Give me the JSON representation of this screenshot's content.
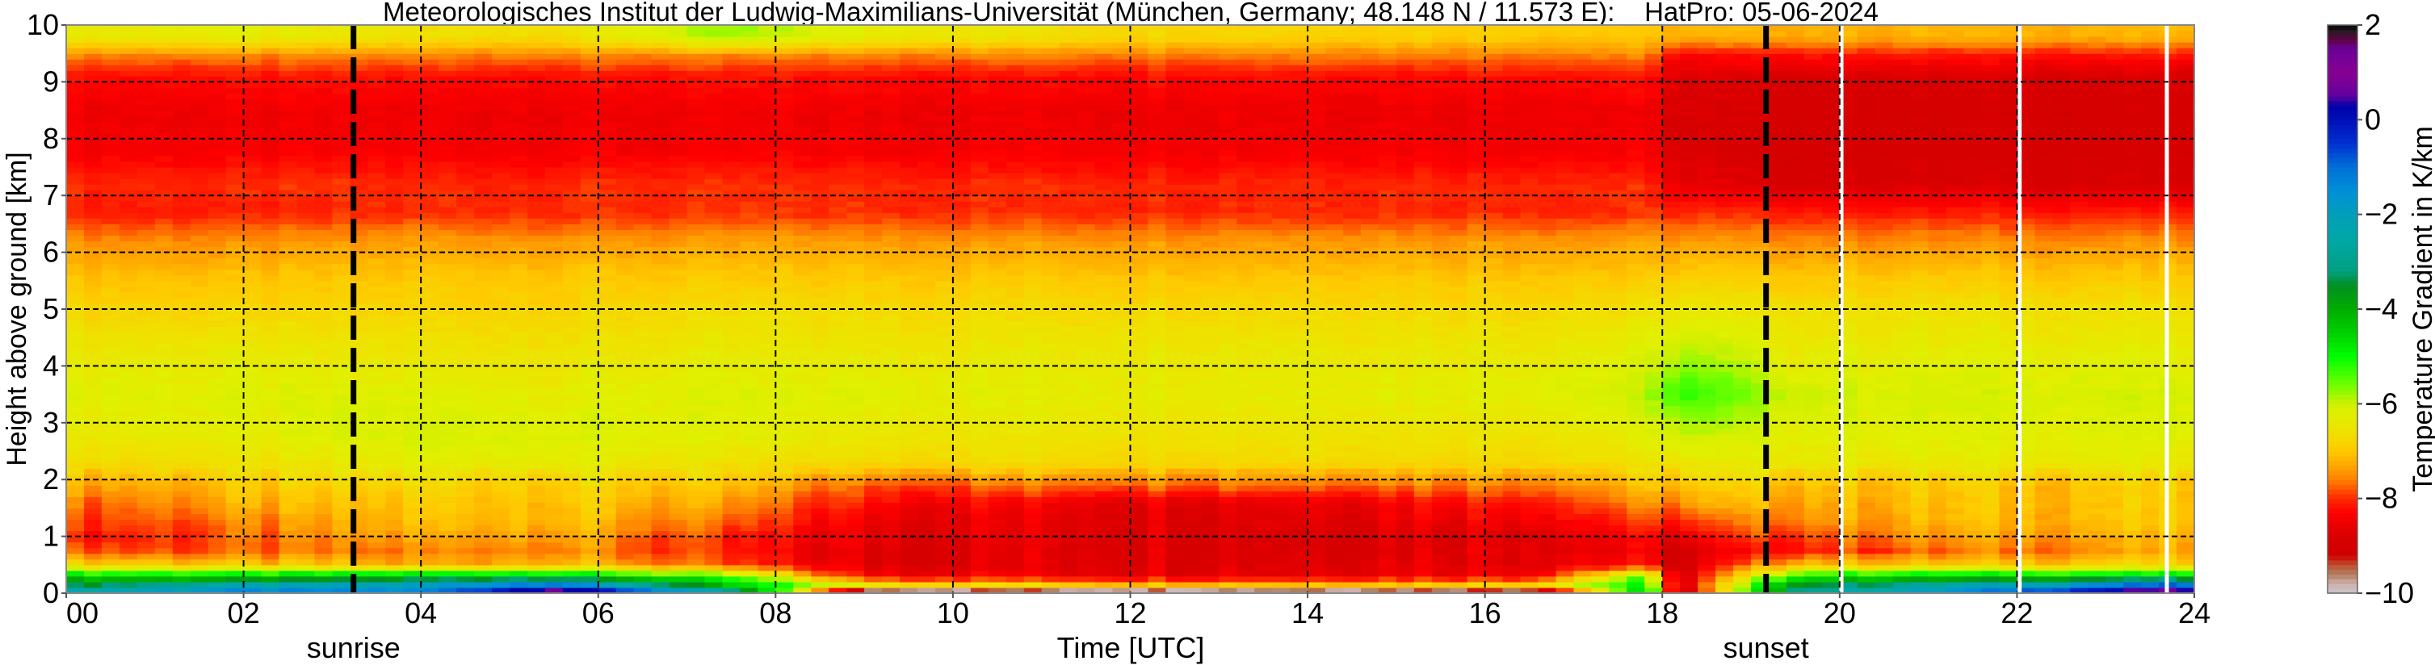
{
  "chart_data": {
    "type": "heatmap",
    "title": "Meteorologisches Institut der Ludwig-Maximilians-Universität (München, Germany; 48.148 N / 11.573 E):    HatPro: 05-06-2024",
    "xlabel": "Time [UTC]",
    "ylabel": "Height above ground [km]",
    "colorbar_label": "Temperature Gradient in K/km",
    "xlim": [
      0,
      24
    ],
    "ylim": [
      0,
      10
    ],
    "clim": [
      -10,
      2
    ],
    "grid": true,
    "xticks": [
      0,
      2,
      4,
      6,
      8,
      10,
      12,
      14,
      16,
      18,
      20,
      22,
      24
    ],
    "xtick_labels": [
      "00",
      "02",
      "04",
      "06",
      "08",
      "10",
      "12",
      "14",
      "16",
      "18",
      "20",
      "22",
      "24"
    ],
    "yticks": [
      0,
      1,
      2,
      3,
      4,
      5,
      6,
      7,
      8,
      9,
      10
    ],
    "ytick_labels": [
      "0",
      "1",
      "2",
      "3",
      "4",
      "5",
      "6",
      "7",
      "8",
      "9",
      "10"
    ],
    "colorbar_ticks": [
      2,
      0,
      -2,
      -4,
      -6,
      -8,
      -10
    ],
    "colorbar_tick_labels": [
      "2",
      "0",
      "−2",
      "−4",
      "−6",
      "−8",
      "−10"
    ],
    "annotations": [
      {
        "label": "sunrise",
        "time": 3.24
      },
      {
        "label": "sunset",
        "time": 19.17
      }
    ],
    "data_gaps_time": [
      20.02,
      22.03,
      23.69
    ],
    "colormap": [
      [
        -10,
        "#c8c8c8"
      ],
      [
        -9.8,
        "#d0b0b0"
      ],
      [
        -9.6,
        "#b08060"
      ],
      [
        -9.4,
        "#c05030"
      ],
      [
        -9.2,
        "#d00000"
      ],
      [
        -8.8,
        "#d80000"
      ],
      [
        -8.3,
        "#ff0000"
      ],
      [
        -8,
        "#ff2800"
      ],
      [
        -7.6,
        "#ff8000"
      ],
      [
        -7.3,
        "#ffa800"
      ],
      [
        -7,
        "#ffc800"
      ],
      [
        -6.6,
        "#f0e000"
      ],
      [
        -6.2,
        "#e0f000"
      ],
      [
        -6,
        "#cff000"
      ],
      [
        -5.6,
        "#70ff00"
      ],
      [
        -5,
        "#00ff00"
      ],
      [
        -4.5,
        "#00d000"
      ],
      [
        -4,
        "#00ad00"
      ],
      [
        -3.5,
        "#009020"
      ],
      [
        -3.2,
        "#00a080"
      ],
      [
        -2.5,
        "#00a8a8"
      ],
      [
        -2,
        "#00a0b8"
      ],
      [
        -1.5,
        "#0090d8"
      ],
      [
        -1,
        "#0070d8"
      ],
      [
        -0.5,
        "#0030d0"
      ],
      [
        0,
        "#0010b8"
      ],
      [
        0.3,
        "#0000a8"
      ],
      [
        0.5,
        "#6000a0"
      ],
      [
        1,
        "#880090"
      ],
      [
        1.5,
        "#6a009a"
      ],
      [
        1.7,
        "#600040"
      ],
      [
        1.9,
        "#202020"
      ],
      [
        2,
        "#000000"
      ]
    ],
    "times": [
      0,
      2,
      4,
      5.5,
      7.5,
      9,
      12,
      14,
      16.5,
      17.8,
      18.2,
      19.5,
      21,
      23.5
    ],
    "heights": [
      0.05,
      0.15,
      0.3,
      0.5,
      0.75,
      1.0,
      1.3,
      1.6,
      1.9,
      2.3,
      2.8,
      3.5,
      4.2,
      5.0,
      5.6,
      6.2,
      6.7,
      7.2,
      7.8,
      8.5,
      9.1,
      9.45,
      9.8
    ],
    "values": [
      [
        -2.5,
        -1.5,
        -1.5,
        0.8,
        -3,
        -9.5,
        -9.6,
        -9.6,
        -9.3,
        -4.5,
        -9.3,
        -3,
        -2,
        0.5
      ],
      [
        -3.5,
        -2.5,
        -2,
        -1,
        -4.5,
        -6.5,
        -7,
        -7,
        -6.8,
        -5,
        -9,
        -3.5,
        -2.8,
        -1
      ],
      [
        -4.5,
        -4.5,
        -4.2,
        -4.2,
        -5.5,
        -8.3,
        -8.5,
        -8.5,
        -8.3,
        -5.5,
        -9,
        -5,
        -4.5,
        -4.5
      ],
      [
        -6.8,
        -7,
        -7.3,
        -7,
        -8,
        -8.7,
        -8.6,
        -8.6,
        -8.5,
        -8.3,
        -9,
        -7,
        -7,
        -6.8
      ],
      [
        -7.8,
        -7.8,
        -7.6,
        -7.4,
        -8.2,
        -8.7,
        -8.6,
        -8.7,
        -8.5,
        -8.5,
        -9,
        -8,
        -7.8,
        -7.3
      ],
      [
        -8.2,
        -7.8,
        -7.3,
        -7.2,
        -8.2,
        -8.6,
        -8.6,
        -8.7,
        -8.6,
        -8.4,
        -8.5,
        -7.8,
        -7.4,
        -7.2
      ],
      [
        -7.9,
        -7.6,
        -7.1,
        -7,
        -7.8,
        -8.5,
        -8.6,
        -8.6,
        -8.3,
        -8,
        -8,
        -7.4,
        -7.2,
        -7
      ],
      [
        -7.7,
        -7.3,
        -7,
        -6.9,
        -7.5,
        -8.2,
        -8.5,
        -8.5,
        -8,
        -7.6,
        -7.4,
        -7.2,
        -7.1,
        -7
      ],
      [
        -7.3,
        -7.1,
        -6.8,
        -6.8,
        -7.2,
        -7.8,
        -7.6,
        -7.6,
        -7.5,
        -7.2,
        -7,
        -7,
        -7,
        -7
      ],
      [
        -6.7,
        -6.6,
        -6.3,
        -6.3,
        -6.6,
        -6.7,
        -6.7,
        -6.7,
        -6.7,
        -6.6,
        -6.4,
        -6.4,
        -6.4,
        -6.4
      ],
      [
        -6.4,
        -6.3,
        -6.1,
        -6.1,
        -6.3,
        -6.4,
        -6.5,
        -6.5,
        -6.5,
        -6.3,
        -6,
        -6.2,
        -6.2,
        -6.2
      ],
      [
        -6.2,
        -6.2,
        -6.2,
        -6.3,
        -6.2,
        -6.2,
        -6.3,
        -6.3,
        -6.2,
        -6,
        -5.2,
        -6,
        -6.1,
        -6.1
      ],
      [
        -6.4,
        -6.4,
        -6.5,
        -6.5,
        -6.4,
        -6.4,
        -6.4,
        -6.4,
        -6.4,
        -6.2,
        -5.8,
        -6.3,
        -6.3,
        -6.3
      ],
      [
        -6.8,
        -6.8,
        -6.8,
        -6.8,
        -6.7,
        -6.7,
        -6.7,
        -6.7,
        -6.7,
        -6.6,
        -6.4,
        -6.6,
        -6.6,
        -6.6
      ],
      [
        -7.1,
        -7.1,
        -7,
        -7,
        -7,
        -7,
        -7,
        -7,
        -7,
        -7,
        -6.9,
        -7,
        -7,
        -7
      ],
      [
        -7.5,
        -7.5,
        -7.4,
        -7.4,
        -7.4,
        -7.4,
        -7.4,
        -7.4,
        -7.4,
        -7.4,
        -7.4,
        -7.5,
        -7.5,
        -7.5
      ],
      [
        -8.1,
        -8.1,
        -8,
        -8,
        -8,
        -8,
        -8,
        -8,
        -8,
        -8,
        -8,
        -8.1,
        -8.1,
        -8.1
      ],
      [
        -8,
        -8,
        -8,
        -8,
        -8,
        -8,
        -8,
        -8,
        -8,
        -8,
        -8.6,
        -8.8,
        -8.8,
        -8.8
      ],
      [
        -8.4,
        -8.4,
        -8.4,
        -8.4,
        -8.4,
        -8.4,
        -8.4,
        -8.4,
        -8.4,
        -8.4,
        -8.8,
        -8.9,
        -8.9,
        -8.9
      ],
      [
        -8.5,
        -8.5,
        -8.5,
        -8.5,
        -8.5,
        -8.5,
        -8.5,
        -8.5,
        -8.5,
        -8.5,
        -8.8,
        -8.9,
        -8.9,
        -8.9
      ],
      [
        -8.2,
        -8.2,
        -8.2,
        -8.2,
        -8.2,
        -8.2,
        -8.2,
        -8.2,
        -8.2,
        -8.2,
        -8.7,
        -8.8,
        -8.8,
        -8.8
      ],
      [
        -7.6,
        -7.6,
        -7.6,
        -7.6,
        -7.6,
        -7.6,
        -7.6,
        -7.6,
        -7.6,
        -7.6,
        -8.4,
        -8.2,
        -8.2,
        -8.2
      ],
      [
        -6.4,
        -6.3,
        -6.6,
        -6.6,
        -5.8,
        -6.3,
        -6.7,
        -6.8,
        -6.9,
        -7,
        -7.2,
        -7.2,
        -7.2,
        -7.2
      ]
    ]
  }
}
